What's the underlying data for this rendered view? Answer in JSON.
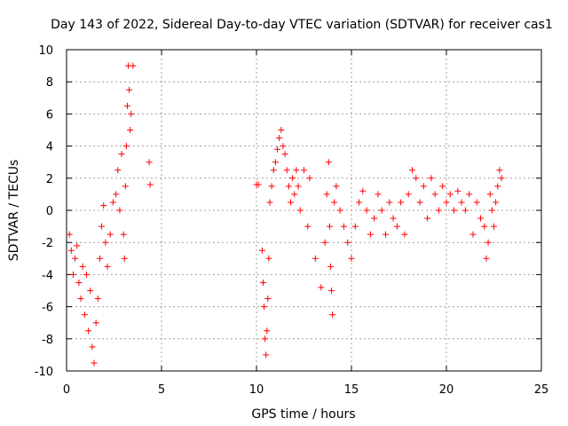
{
  "colors": {
    "series": "#ff0000",
    "grid": "#a0a0a0",
    "axes": "#000000",
    "background": "#ffffff"
  },
  "chart_data": {
    "type": "scatter",
    "title": "Day 143 of 2022, Sidereal Day-to-day VTEC variation (SDTVAR) for receiver cas1",
    "xlabel": "GPS time / hours",
    "ylabel": "SDTVAR / TECUs",
    "xlim": [
      0,
      25
    ],
    "ylim": [
      -10,
      10
    ],
    "xticks": [
      0,
      5,
      10,
      15,
      20,
      25
    ],
    "yticks": [
      -10,
      -8,
      -6,
      -4,
      -2,
      0,
      2,
      4,
      6,
      8,
      10
    ],
    "grid": true,
    "marker": "plus",
    "series": [
      {
        "name": "SDTVAR",
        "x": [
          0.15,
          0.25,
          0.35,
          0.45,
          0.55,
          0.65,
          0.75,
          0.85,
          0.95,
          1.05,
          1.15,
          1.25,
          1.35,
          1.45,
          1.55,
          1.65,
          1.75,
          1.85,
          1.95,
          2.05,
          2.15,
          2.3,
          2.45,
          2.6,
          2.7,
          2.8,
          2.9,
          3.0,
          3.05,
          3.1,
          3.15,
          3.2,
          3.25,
          3.3,
          3.35,
          3.4,
          3.5,
          4.35,
          4.4,
          10.0,
          10.1,
          10.3,
          10.35,
          10.4,
          10.45,
          10.5,
          10.55,
          10.6,
          10.65,
          10.7,
          10.8,
          10.9,
          11.0,
          11.1,
          11.2,
          11.3,
          11.4,
          11.5,
          11.6,
          11.7,
          11.8,
          11.9,
          12.0,
          12.1,
          12.2,
          12.3,
          12.5,
          12.7,
          12.8,
          13.1,
          13.4,
          13.6,
          13.7,
          13.8,
          13.85,
          13.9,
          13.95,
          14.0,
          14.1,
          14.2,
          14.4,
          14.6,
          14.8,
          15.0,
          15.2,
          15.4,
          15.6,
          15.8,
          16.0,
          16.2,
          16.4,
          16.6,
          16.8,
          17.0,
          17.2,
          17.4,
          17.6,
          17.8,
          18.0,
          18.2,
          18.4,
          18.6,
          18.8,
          19.0,
          19.2,
          19.4,
          19.6,
          19.8,
          20.0,
          20.2,
          20.4,
          20.6,
          20.8,
          21.0,
          21.2,
          21.4,
          21.6,
          21.8,
          22.0,
          22.1,
          22.2,
          22.3,
          22.4,
          22.5,
          22.6,
          22.7,
          22.8,
          22.9
        ],
        "y": [
          -1.5,
          -2.5,
          -4.0,
          -3.0,
          -2.2,
          -4.5,
          -5.5,
          -3.5,
          -6.5,
          -4.0,
          -7.5,
          -5.0,
          -8.5,
          -9.5,
          -7.0,
          -5.5,
          -3.0,
          -1.0,
          0.3,
          -2.0,
          -3.5,
          -1.5,
          0.5,
          1.0,
          2.5,
          0.0,
          3.5,
          -1.5,
          -3.0,
          1.5,
          4.0,
          6.5,
          9.0,
          7.5,
          5.0,
          6.0,
          9.0,
          3.0,
          1.6,
          1.6,
          1.6,
          -2.5,
          -4.5,
          -6.0,
          -8.0,
          -9.0,
          -7.5,
          -5.5,
          -3.0,
          0.5,
          1.5,
          2.5,
          3.0,
          3.8,
          4.5,
          5.0,
          4.0,
          3.5,
          2.5,
          1.5,
          0.5,
          2.0,
          1.0,
          2.5,
          1.5,
          0.0,
          2.5,
          -1.0,
          2.0,
          -3.0,
          -4.8,
          -2.0,
          1.0,
          3.0,
          -1.0,
          -3.5,
          -5.0,
          -6.5,
          0.5,
          1.5,
          0.0,
          -1.0,
          -2.0,
          -3.0,
          -1.0,
          0.5,
          1.2,
          0.0,
          -1.5,
          -0.5,
          1.0,
          0.0,
          -1.5,
          0.5,
          -0.5,
          -1.0,
          0.5,
          -1.5,
          1.0,
          2.5,
          2.0,
          0.5,
          1.5,
          -0.5,
          2.0,
          1.0,
          0.0,
          1.5,
          0.5,
          1.0,
          0.0,
          1.2,
          0.5,
          0.0,
          1.0,
          -1.5,
          0.5,
          -0.5,
          -1.0,
          -3.0,
          -2.0,
          1.0,
          0.0,
          -1.0,
          0.5,
          1.5,
          2.5,
          2.0
        ]
      }
    ]
  }
}
